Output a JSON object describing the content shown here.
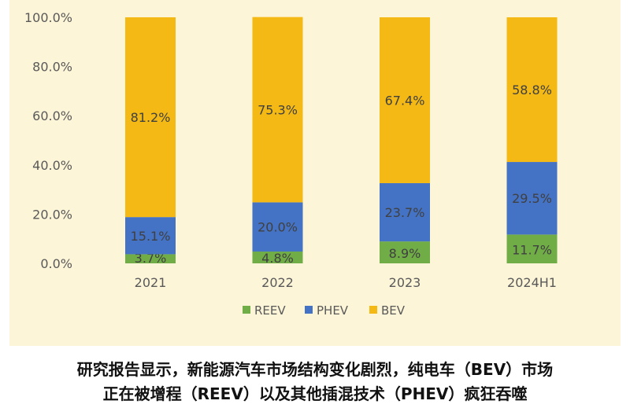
{
  "chart_data": {
    "type": "bar",
    "stacked": true,
    "categories": [
      "2021",
      "2022",
      "2023",
      "2024H1"
    ],
    "series": [
      {
        "name": "REEV",
        "values": [
          3.7,
          4.8,
          8.9,
          11.7
        ],
        "labels": [
          "3.7%",
          "4.8%",
          "8.9%",
          "11.7%"
        ],
        "color": "#70ad47"
      },
      {
        "name": "PHEV",
        "values": [
          15.1,
          20.0,
          23.7,
          29.5
        ],
        "labels": [
          "15.1%",
          "20.0%",
          "23.7%",
          "29.5%"
        ],
        "color": "#4472c4"
      },
      {
        "name": "BEV",
        "values": [
          81.2,
          75.3,
          67.4,
          58.8
        ],
        "labels": [
          "81.2%",
          "75.3%",
          "67.4%",
          "58.8%"
        ],
        "color": "#f4b914"
      }
    ],
    "y_ticks": [
      "0.0%",
      "20.0%",
      "40.0%",
      "60.0%",
      "80.0%",
      "100.0%"
    ],
    "ylim": [
      0,
      100
    ],
    "grid": false,
    "legend_position": "bottom",
    "title": "",
    "xlabel": "",
    "ylabel": ""
  },
  "caption": {
    "line1": "研究报告显示，新能源汽车市场结构变化剧烈，纯电车（BEV）市场",
    "line2": "正在被增程（REEV）以及其他插混技术（PHEV）疯狂吞噬"
  },
  "colors": {
    "panel_background": "#fdf5d8",
    "REEV": "#70ad47",
    "PHEV": "#4472c4",
    "BEV": "#f4b914"
  }
}
